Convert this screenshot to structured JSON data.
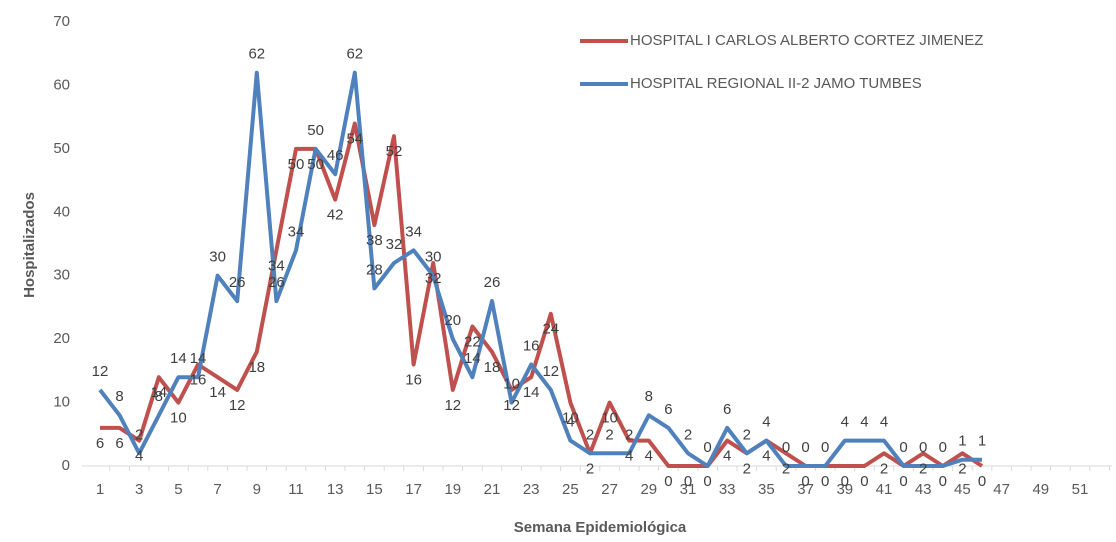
{
  "chart_data": {
    "type": "line",
    "ylabel": "Hospitalizados",
    "xlabel": "Semana Epidemiológica",
    "categories": [
      "1",
      null,
      "3",
      null,
      "5",
      null,
      "7",
      null,
      "9",
      null,
      "11",
      null,
      "13",
      null,
      "15",
      null,
      "17",
      null,
      "19",
      null,
      "21",
      null,
      "23",
      null,
      "25",
      null,
      "27",
      null,
      "29",
      null,
      "31",
      null,
      "33",
      null,
      "35",
      null,
      "37",
      null,
      "39",
      null,
      "41",
      null,
      "43",
      null,
      "45",
      null,
      "47",
      null,
      "49",
      null,
      "51",
      null
    ],
    "series": [
      {
        "name": "HOSPITAL I CARLOS ALBERTO CORTEZ JIMENEZ",
        "color": "#c0504d",
        "values": [
          6,
          6,
          4,
          14,
          10,
          16,
          14,
          12,
          18,
          34,
          50,
          50,
          42,
          54,
          38,
          52,
          16,
          32,
          12,
          22,
          18,
          12,
          14,
          24,
          10,
          2,
          10,
          4,
          4,
          0,
          0,
          0,
          4,
          2,
          4,
          2,
          0,
          0,
          0,
          0,
          2,
          0,
          2,
          0,
          2,
          0,
          null,
          null,
          null,
          null,
          null,
          null
        ]
      },
      {
        "name": "HOSPITAL REGIONAL II-2 JAMO TUMBES",
        "color": "#4f81bd",
        "values": [
          12,
          8,
          2,
          8,
          14,
          14,
          30,
          26,
          62,
          26,
          34,
          50,
          46,
          62,
          28,
          32,
          34,
          30,
          20,
          14,
          26,
          10,
          16,
          12,
          4,
          2,
          2,
          2,
          8,
          6,
          2,
          0,
          6,
          2,
          4,
          0,
          0,
          0,
          4,
          4,
          4,
          0,
          0,
          0,
          1,
          1,
          null,
          null,
          null,
          null,
          null,
          null
        ]
      }
    ],
    "ylim": [
      0,
      70
    ],
    "yticks": [
      0,
      10,
      20,
      30,
      40,
      50,
      60,
      70
    ],
    "grid": false,
    "legend": "top-right"
  }
}
